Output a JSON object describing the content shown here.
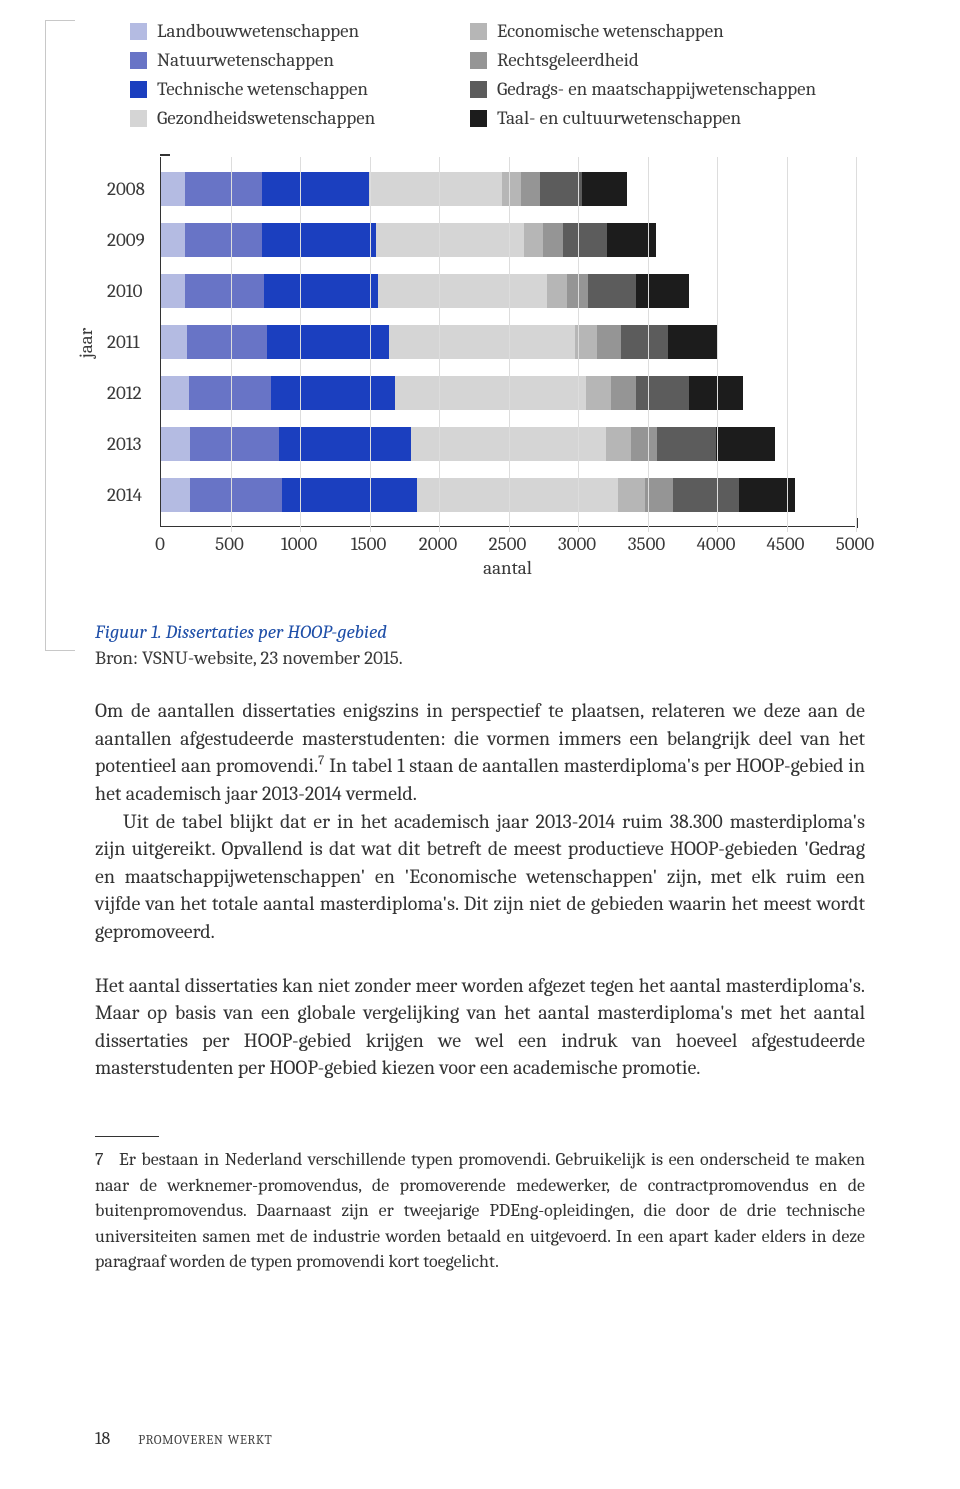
{
  "legend": {
    "left": [
      {
        "label": "Landbouwwetenschappen",
        "color": "#b4bbe2"
      },
      {
        "label": "Natuurwetenschappen",
        "color": "#6874c6"
      },
      {
        "label": "Technische wetenschappen",
        "color": "#1b3fbf"
      },
      {
        "label": "Gezondheidswetenschappen",
        "color": "#d5d5d5"
      }
    ],
    "right": [
      {
        "label": "Economische wetenschappen",
        "color": "#b6b6b6"
      },
      {
        "label": "Rechtsgeleerdheid",
        "color": "#959595"
      },
      {
        "label": "Gedrags- en maatschappijwetenschappen",
        "color": "#5c5c5c"
      },
      {
        "label": "Taal- en cultuurwetenschappen",
        "color": "#1c1c1c"
      }
    ]
  },
  "chart": {
    "type": "stacked-bar-horizontal",
    "y_axis_label": "jaar",
    "x_axis_label": "aantal",
    "x_min": 0,
    "x_max": 5000,
    "x_tick_step": 500,
    "x_ticks": [
      "0",
      "500",
      "1000",
      "1500",
      "2000",
      "2500",
      "3000",
      "3500",
      "4000",
      "4500",
      "5000"
    ],
    "categories": [
      "2008",
      "2009",
      "2010",
      "2011",
      "2012",
      "2013",
      "2014"
    ],
    "series_colors": [
      "#b4bbe2",
      "#6874c6",
      "#1b3fbf",
      "#d5d5d5",
      "#b6b6b6",
      "#959595",
      "#5c5c5c",
      "#1c1c1c"
    ],
    "grid_color": "#dddddd",
    "axis_color": "#333333",
    "data": [
      [
        170,
        560,
        770,
        950,
        140,
        140,
        300,
        320
      ],
      [
        170,
        560,
        820,
        1060,
        140,
        140,
        320,
        350
      ],
      [
        170,
        570,
        820,
        1220,
        140,
        150,
        350,
        380
      ],
      [
        190,
        570,
        880,
        1340,
        160,
        170,
        340,
        350
      ],
      [
        200,
        590,
        890,
        1380,
        180,
        180,
        380,
        390
      ],
      [
        210,
        640,
        950,
        1400,
        180,
        190,
        420,
        430
      ],
      [
        210,
        660,
        970,
        1450,
        190,
        200,
        480,
        400
      ]
    ]
  },
  "caption": {
    "title": "Figuur 1. Dissertaties per HOOP-gebied",
    "source": "Bron: VSNU-website, 23 november 2015."
  },
  "para1": "Om de aantallen dissertaties enigszins in perspectief te plaatsen, relateren we deze aan de aantallen afgestudeerde masterstudenten: die vormen immers een belangrijk deel van het potentieel aan promovendi.",
  "para1b": " In tabel 1 staan de aantallen masterdiploma's per HOOP-gebied in het academisch jaar 2013-2014 vermeld.",
  "para1c": "Uit de tabel blijkt dat er in het academisch jaar 2013-2014 ruim 38.300 masterdiploma's zijn uitgereikt. Opvallend is dat wat dit betreft de meest productieve HOOP-gebieden 'Gedrag en maatschappijwetenschappen' en 'Economische wetenschappen' zijn, met elk ruim een vijfde van het totale aantal masterdiploma's. Dit zijn niet de gebieden waarin het meest wordt gepromoveerd.",
  "para2": "Het aantal dissertaties kan niet zonder meer worden afgezet tegen het aantal masterdiploma's. Maar op basis van een globale vergelijking van het aantal masterdiploma's met het aantal dissertaties per HOOP-gebied krijgen we wel een indruk van hoeveel afgestudeerde masterstudenten per HOOP-gebied kiezen voor een academische promotie.",
  "footnote": {
    "num": "7",
    "text": "Er bestaan in Nederland verschillende typen promovendi. Gebruikelijk is een onderscheid te maken naar de werknemer-promovendus, de promoverende medewerker, de contractpromovendus en de buitenpromovendus. Daarnaast zijn er tweejarige PDEng-opleidingen, die door de drie technische universiteiten samen met de industrie worden betaald en uitgevoerd. In een apart kader elders in deze paragraaf worden de typen promovendi kort toegelicht."
  },
  "footer": {
    "page": "18",
    "running": "promoveren werkt"
  }
}
